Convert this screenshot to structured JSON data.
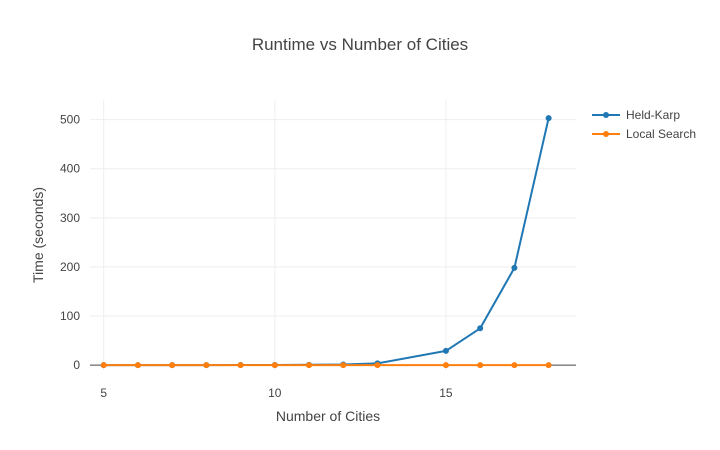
{
  "chart_data": {
    "type": "line",
    "title": "Runtime vs Number of Cities",
    "xlabel": "Number of Cities",
    "ylabel": "Time (seconds)",
    "xlim": [
      4.6,
      18.8
    ],
    "ylim": [
      -10,
      540
    ],
    "xticks": [
      5,
      10,
      15
    ],
    "yticks": [
      0,
      100,
      200,
      300,
      400,
      500
    ],
    "grid": true,
    "legend_position": "top-right",
    "series": [
      {
        "name": "Held-Karp",
        "color": "#1f77b4",
        "x": [
          5,
          6,
          7,
          8,
          9,
          10,
          11,
          12,
          13,
          15,
          16,
          17,
          18
        ],
        "y": [
          0,
          0,
          0,
          0,
          0.1,
          0.2,
          0.5,
          1.2,
          3.5,
          29,
          75,
          198,
          503
        ]
      },
      {
        "name": "Local Search",
        "color": "#ff7f0e",
        "x": [
          5,
          6,
          7,
          8,
          9,
          10,
          11,
          12,
          13,
          15,
          16,
          17,
          18
        ],
        "y": [
          0,
          0,
          0,
          0,
          0,
          0,
          0,
          0,
          0,
          0,
          0,
          0,
          0
        ]
      }
    ]
  }
}
